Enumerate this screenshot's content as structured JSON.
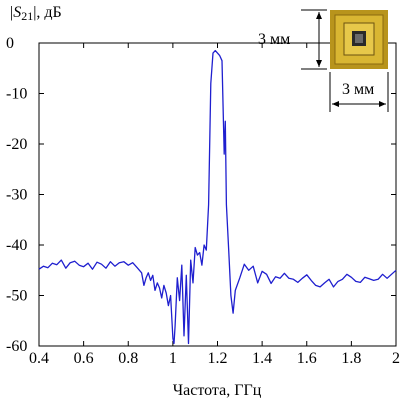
{
  "chart_data": {
    "type": "line",
    "title": "",
    "xlabel": "Частота, ГГц",
    "ylabel": {
      "prefix": "|",
      "symbol": "S",
      "subscript": "21",
      "suffix": "|, дБ"
    },
    "xlim": [
      0.4,
      2.0
    ],
    "ylim": [
      -60,
      0
    ],
    "x_ticks": [
      0.4,
      0.6,
      0.8,
      1.0,
      1.2,
      1.4,
      1.6,
      1.8,
      2.0
    ],
    "x_tick_labels": [
      "0.4",
      "0.6",
      "0.8",
      "1",
      "1.2",
      "1.4",
      "1.6",
      "1.8",
      "2"
    ],
    "y_ticks": [
      0,
      -10,
      -20,
      -30,
      -40,
      -50,
      -60
    ],
    "y_tick_labels": [
      "0",
      "-10",
      "-20",
      "-30",
      "-40",
      "-50",
      "-60"
    ],
    "grid": false,
    "line_color": "#1f1fcf",
    "series": [
      {
        "x": [
          0.4,
          0.42,
          0.44,
          0.46,
          0.48,
          0.5,
          0.52,
          0.54,
          0.56,
          0.58,
          0.6,
          0.62,
          0.64,
          0.66,
          0.68,
          0.7,
          0.72,
          0.74,
          0.76,
          0.78,
          0.8,
          0.82,
          0.84,
          0.86,
          0.87,
          0.88,
          0.89,
          0.9,
          0.91,
          0.92,
          0.93,
          0.94,
          0.95,
          0.96,
          0.97,
          0.98,
          0.99,
          1.0,
          1.005,
          1.01,
          1.02,
          1.03,
          1.04,
          1.05,
          1.06,
          1.07,
          1.08,
          1.09,
          1.1,
          1.11,
          1.12,
          1.13,
          1.14,
          1.15,
          1.16,
          1.17,
          1.18,
          1.19,
          1.2,
          1.21,
          1.22,
          1.23,
          1.235,
          1.24,
          1.25,
          1.26,
          1.27,
          1.28,
          1.3,
          1.32,
          1.34,
          1.36,
          1.38,
          1.4,
          1.42,
          1.44,
          1.46,
          1.48,
          1.5,
          1.52,
          1.54,
          1.56,
          1.58,
          1.6,
          1.62,
          1.64,
          1.66,
          1.68,
          1.7,
          1.72,
          1.74,
          1.76,
          1.78,
          1.8,
          1.82,
          1.84,
          1.86,
          1.88,
          1.9,
          1.92,
          1.94,
          1.96,
          1.98,
          2.0
        ],
        "y": [
          -44.8,
          -44.2,
          -44.5,
          -43.6,
          -43.9,
          -43.0,
          -44.6,
          -43.5,
          -43.2,
          -44.0,
          -44.3,
          -43.6,
          -44.8,
          -43.4,
          -43.8,
          -44.6,
          -43.3,
          -44.2,
          -43.5,
          -43.3,
          -44.0,
          -43.5,
          -44.5,
          -45.5,
          -48.0,
          -46.5,
          -45.5,
          -47.0,
          -46.0,
          -49.0,
          -47.5,
          -48.5,
          -50.5,
          -48.0,
          -49.5,
          -52.0,
          -50.0,
          -58.5,
          -59.5,
          -56.0,
          -46.5,
          -51.0,
          -44.0,
          -58.0,
          -46.0,
          -59.5,
          -43.0,
          -47.5,
          -40.5,
          -42.0,
          -41.5,
          -44.0,
          -40.0,
          -41.0,
          -32.0,
          -8.0,
          -2.0,
          -1.5,
          -2.0,
          -2.5,
          -3.5,
          -22.0,
          -15.5,
          -32.0,
          -41.0,
          -50.0,
          -53.5,
          -49.0,
          -46.5,
          -43.8,
          -45.0,
          -44.2,
          -47.5,
          -45.2,
          -45.8,
          -47.6,
          -46.3,
          -46.6,
          -45.6,
          -46.6,
          -46.8,
          -47.4,
          -46.6,
          -45.9,
          -47.0,
          -48.0,
          -48.3,
          -47.5,
          -46.8,
          -48.3,
          -47.2,
          -46.8,
          -45.8,
          -46.4,
          -47.2,
          -47.4,
          -46.4,
          -46.7,
          -47.0,
          -46.8,
          -45.8,
          -46.6,
          -45.8,
          -45.0
        ]
      }
    ]
  },
  "inset": {
    "height_label": "3 мм",
    "width_label": "3 мм"
  }
}
